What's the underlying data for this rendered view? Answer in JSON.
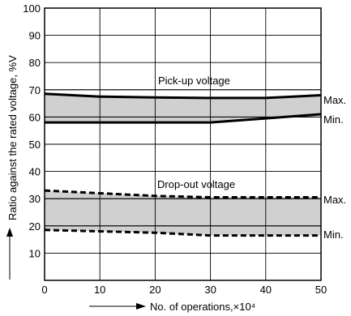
{
  "chart_data": {
    "type": "line",
    "xlabel": "No. of operations,×10⁴",
    "ylabel": "Ratio against the rated voltage, %V",
    "xlim": [
      0,
      50
    ],
    "ylim": [
      0,
      100
    ],
    "x_ticks": [
      0,
      10,
      20,
      30,
      40,
      50
    ],
    "y_ticks": [
      10,
      20,
      30,
      40,
      50,
      60,
      70,
      80,
      90,
      100
    ],
    "grid": true,
    "annotations": {
      "pickup": "Pick-up voltage",
      "dropout": "Drop-out voltage",
      "max": "Max.",
      "min": "Min."
    },
    "bands": [
      {
        "group": "pickup",
        "style": "solid",
        "max": {
          "x": [
            0,
            10,
            20,
            30,
            40,
            50
          ],
          "y": [
            68.5,
            67.5,
            67.2,
            67.0,
            67.0,
            68.0
          ]
        },
        "min": {
          "x": [
            0,
            10,
            20,
            30,
            40,
            50
          ],
          "y": [
            58.0,
            58.0,
            58.0,
            58.0,
            59.5,
            61.0
          ]
        }
      },
      {
        "group": "dropout",
        "style": "dashed",
        "max": {
          "x": [
            0,
            10,
            20,
            30,
            40,
            50
          ],
          "y": [
            33.0,
            32.0,
            31.0,
            30.5,
            30.5,
            30.5
          ]
        },
        "min": {
          "x": [
            0,
            10,
            20,
            30,
            40,
            50
          ],
          "y": [
            18.5,
            18.0,
            17.5,
            16.5,
            16.5,
            16.5
          ]
        }
      }
    ],
    "reference_lines": [
      {
        "y": 70,
        "group": "pickup"
      },
      {
        "y": 60,
        "group": "pickup"
      },
      {
        "y": 30,
        "group": "dropout"
      },
      {
        "y": 20,
        "group": "dropout"
      }
    ],
    "colors": {
      "band_fill": "#d0d0d0",
      "line": "#000000"
    }
  }
}
